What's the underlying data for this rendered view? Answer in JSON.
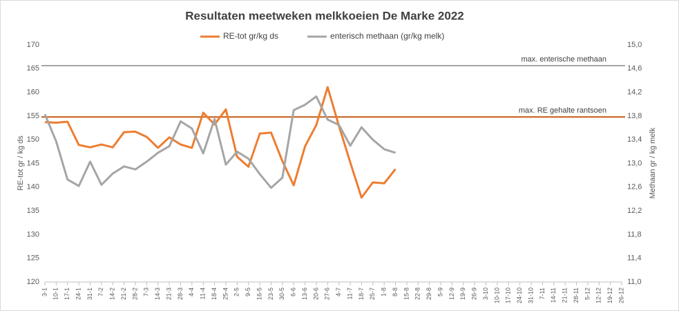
{
  "chart_data": {
    "type": "line",
    "title": "Resultaten meetweken melkkoeien De Marke 2022",
    "y_label": "RE-tot gr / kg ds",
    "y2_label": "Methaan gr / kg melk",
    "categories": [
      "3-1",
      "10-1",
      "17-1",
      "24-1",
      "31-1",
      "7-2",
      "14-2",
      "21-2",
      "28-2",
      "7-3",
      "14-3",
      "21-3",
      "28-3",
      "4-4",
      "11-4",
      "18-4",
      "25-4",
      "2-5",
      "9-5",
      "16-5",
      "23-5",
      "30-5",
      "6-6",
      "13-6",
      "20-6",
      "27-6",
      "4-7",
      "11-7",
      "18-7",
      "25-7",
      "1-8",
      "8-8",
      "15-8",
      "22-8",
      "29-8",
      "5-9",
      "12-9",
      "19-9",
      "26-9",
      "3-10",
      "10-10",
      "17-10",
      "24-10",
      "31-10",
      "7-11",
      "14-11",
      "21-11",
      "28-11",
      "5-12",
      "12-12",
      "19-12",
      "26-12"
    ],
    "series": [
      {
        "name": "RE-tot gr/kg ds",
        "color": "#ed7d31",
        "axis": "y",
        "values": [
          153.7,
          153.6,
          153.8,
          148.9,
          148.4,
          149.0,
          148.4,
          151.6,
          151.7,
          150.6,
          148.3,
          150.5,
          149.0,
          148.3,
          155.7,
          153.2,
          156.4,
          146.4,
          144.3,
          151.3,
          151.5,
          145.5,
          140.4,
          148.6,
          153.1,
          161.1,
          152.9,
          145.2,
          137.8,
          141.0,
          140.8,
          143.8,
          null,
          null,
          null,
          null,
          null,
          null,
          null,
          null,
          null,
          null,
          null,
          null,
          null,
          null,
          null,
          null,
          null,
          null,
          null,
          null
        ]
      },
      {
        "name": "enterisch methaan (gr/kg melk)",
        "color": "#a5a5a5",
        "axis": "y2",
        "values": [
          13.83,
          13.37,
          12.73,
          12.62,
          13.03,
          12.64,
          12.83,
          12.95,
          12.9,
          13.03,
          13.18,
          13.29,
          13.71,
          13.59,
          13.17,
          13.75,
          12.98,
          13.2,
          13.08,
          12.82,
          12.59,
          12.76,
          13.9,
          13.99,
          14.13,
          13.74,
          13.65,
          13.3,
          13.61,
          13.4,
          13.24,
          13.18,
          null,
          null,
          null,
          null,
          null,
          null,
          null,
          null,
          null,
          null,
          null,
          null,
          null,
          null,
          null,
          null,
          null,
          null,
          null,
          null
        ]
      }
    ],
    "reference_lines": [
      {
        "label": "max. enterische methaan",
        "value": 14.65,
        "axis": "y2",
        "color": "#a5a5a5"
      },
      {
        "label": "max. RE gehalte rantsoen",
        "value": 154.8,
        "axis": "y",
        "color": "#c55a11"
      }
    ],
    "ylim": [
      120,
      170
    ],
    "yticks": [
      120,
      125,
      130,
      135,
      140,
      145,
      150,
      155,
      160,
      165,
      170
    ],
    "y2lim": [
      11,
      15
    ],
    "y2ticks": [
      {
        "value": 11,
        "label": "11,0"
      },
      {
        "value": 11.4,
        "label": "11,4"
      },
      {
        "value": 11.8,
        "label": "11,8"
      },
      {
        "value": 12.2,
        "label": "12,2"
      },
      {
        "value": 12.6,
        "label": "12,6"
      },
      {
        "value": 13,
        "label": "13,0"
      },
      {
        "value": 13.4,
        "label": "13,4"
      },
      {
        "value": 13.8,
        "label": "13,8"
      },
      {
        "value": 14.2,
        "label": "14,2"
      },
      {
        "value": 14.6,
        "label": "14,6"
      },
      {
        "value": 15,
        "label": "15,0"
      }
    ],
    "grid": false,
    "legend": "top"
  }
}
